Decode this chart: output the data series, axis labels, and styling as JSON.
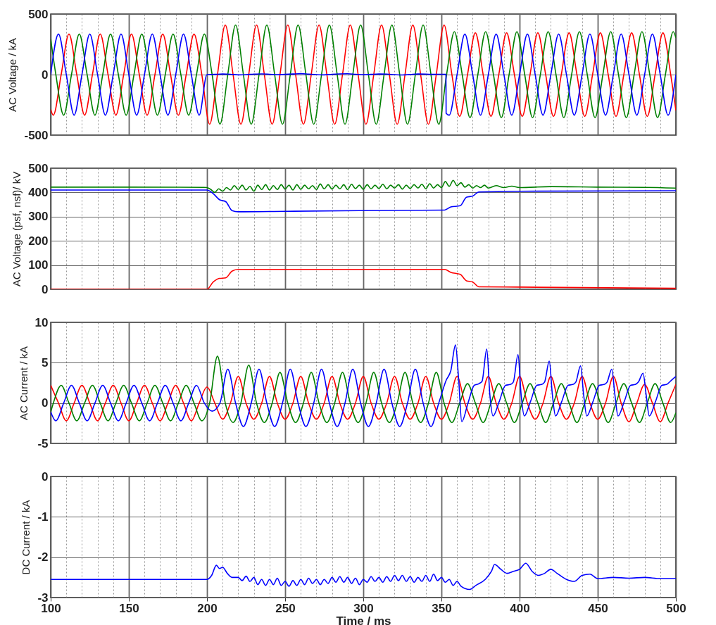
{
  "chart_data": [
    {
      "type": "line",
      "ylabel": "AC Voltage / kA",
      "xlim": [
        100,
        500
      ],
      "ylim": [
        -500,
        500
      ],
      "yticks": [
        -500,
        0,
        500
      ],
      "grid": true,
      "tick_labels": "y",
      "xticks": [
        100,
        {
          "value": 110,
          "label": null
        },
        {
          "value": 120,
          "label": null
        },
        {
          "value": 130,
          "label": null
        },
        {
          "value": 140,
          "label": null
        },
        150,
        {
          "value": 160,
          "label": null
        },
        {
          "value": 170,
          "label": null
        },
        {
          "value": 180,
          "label": null
        },
        {
          "value": 190,
          "label": null
        },
        200,
        {
          "value": 210,
          "label": null
        },
        {
          "value": 220,
          "label": null
        },
        {
          "value": 230,
          "label": null
        },
        {
          "value": 240,
          "label": null
        },
        250,
        {
          "value": 260,
          "label": null
        },
        {
          "value": 270,
          "label": null
        },
        {
          "value": 280,
          "label": null
        },
        {
          "value": 290,
          "label": null
        },
        300,
        {
          "value": 310,
          "label": null
        },
        {
          "value": 320,
          "label": null
        },
        {
          "value": 330,
          "label": null
        },
        {
          "value": 340,
          "label": null
        },
        350,
        {
          "value": 360,
          "label": null
        },
        {
          "value": 370,
          "label": null
        },
        {
          "value": 380,
          "label": null
        },
        {
          "value": 390,
          "label": null
        },
        400,
        {
          "value": 410,
          "label": null
        },
        {
          "value": 420,
          "label": null
        },
        {
          "value": 430,
          "label": null
        },
        {
          "value": 440,
          "label": null
        },
        450,
        {
          "value": 460,
          "label": null
        },
        {
          "value": 470,
          "label": null
        },
        {
          "value": 480,
          "label": null
        },
        {
          "value": 490,
          "label": null
        },
        500
      ],
      "series": [
        {
          "color": "#ff0000",
          "x": [
            100,
            101.7,
            106.7,
            111.7,
            116.7,
            121.7,
            126.7,
            131.7,
            136.7,
            141.7,
            146.7,
            151.7,
            156.7,
            161.7,
            166.7,
            171.7,
            176.7,
            181.7,
            186.7,
            191.7,
            196.7,
            201.7,
            206.7,
            211.7,
            216.7,
            221.7,
            226.7,
            231.7,
            236.7,
            241.7,
            246.7,
            251.7,
            256.7,
            261.7,
            266.7,
            271.7,
            276.7,
            281.7,
            286.7,
            291.7,
            296.7,
            301.7,
            306.7,
            311.7,
            316.7,
            321.7,
            326.7,
            331.7,
            336.7,
            341.7,
            346.7,
            351.7,
            356.7,
            361.7,
            366.7,
            371.7,
            376.7,
            381.7,
            386.7,
            391.7,
            396.7,
            401.7,
            406.7,
            411.7,
            416.7,
            421.7,
            426.7,
            431.7,
            436.7,
            441.7,
            446.7,
            451.7,
            456.7,
            461.7,
            466.7,
            471.7,
            476.7,
            481.7,
            486.7,
            491.7,
            496.7,
            500
          ],
          "values": [
            -287,
            -335,
            0,
            335,
            0,
            -335,
            0,
            335,
            0,
            -335,
            0,
            335,
            0,
            -335,
            0,
            335,
            0,
            -335,
            0,
            335,
            0,
            -410,
            0,
            410,
            0,
            -410,
            0,
            410,
            0,
            -410,
            0,
            410,
            0,
            -410,
            0,
            410,
            0,
            -410,
            0,
            410,
            0,
            -410,
            0,
            410,
            0,
            -410,
            0,
            410,
            0,
            -410,
            0,
            410,
            0,
            -345,
            0,
            345,
            0,
            -345,
            0,
            345,
            0,
            -345,
            0,
            345,
            0,
            -345,
            0,
            345,
            0,
            -345,
            0,
            345,
            0,
            -345,
            0,
            345,
            0,
            -345,
            0,
            345,
            0,
            -296
          ]
        },
        {
          "color": "#008000",
          "x": [
            100,
            103.3,
            108.3,
            113.3,
            118.3,
            123.3,
            128.3,
            133.3,
            138.3,
            143.3,
            148.3,
            153.3,
            158.3,
            163.3,
            168.3,
            173.3,
            178.3,
            183.3,
            188.3,
            193.3,
            198.3,
            203.3,
            208.3,
            213.3,
            218.3,
            223.3,
            228.3,
            233.3,
            238.3,
            243.3,
            248.3,
            253.3,
            258.3,
            263.3,
            268.3,
            273.3,
            278.3,
            283.3,
            288.3,
            293.3,
            298.3,
            303.3,
            308.3,
            313.3,
            318.3,
            323.3,
            328.3,
            333.3,
            338.3,
            343.3,
            348.3,
            353.3,
            358.3,
            363.3,
            368.3,
            373.3,
            378.3,
            383.3,
            388.3,
            393.3,
            398.3,
            403.3,
            408.3,
            413.3,
            418.3,
            423.3,
            428.3,
            433.3,
            438.3,
            443.3,
            448.3,
            453.3,
            458.3,
            463.3,
            468.3,
            473.3,
            478.3,
            483.3,
            488.3,
            493.3,
            498.3,
            500
          ],
          "values": [
            293,
            0,
            -335,
            0,
            335,
            0,
            -335,
            0,
            335,
            0,
            -335,
            0,
            335,
            0,
            -335,
            0,
            335,
            0,
            -335,
            0,
            335,
            0,
            -410,
            0,
            410,
            0,
            -410,
            0,
            410,
            0,
            -410,
            0,
            410,
            0,
            -410,
            0,
            410,
            0,
            -410,
            0,
            410,
            0,
            -410,
            0,
            410,
            0,
            -410,
            0,
            410,
            0,
            -410,
            0,
            355,
            0,
            -355,
            0,
            355,
            0,
            -355,
            0,
            355,
            0,
            -355,
            0,
            355,
            0,
            -355,
            0,
            355,
            0,
            -355,
            0,
            355,
            0,
            -355,
            0,
            355,
            0,
            -355,
            0,
            355,
            305
          ]
        },
        {
          "color": "#0000ff",
          "x": [
            100,
            105,
            110,
            115,
            120,
            125,
            130,
            135,
            140,
            145,
            150,
            155,
            160,
            165,
            170,
            175,
            180,
            185,
            190,
            195,
            200,
            205,
            210,
            215,
            220,
            225,
            230,
            235,
            240,
            245,
            250,
            255,
            260,
            265,
            270,
            275,
            280,
            285,
            290,
            295,
            300,
            305,
            310,
            315,
            320,
            325,
            330,
            335,
            340,
            345,
            350,
            352.9,
            353,
            355,
            360,
            365,
            370,
            375,
            380,
            385,
            390,
            395,
            400,
            405,
            410,
            415,
            420,
            425,
            430,
            435,
            440,
            445,
            450,
            455,
            460,
            465,
            470,
            475,
            480,
            485,
            490,
            495,
            500
          ],
          "values": [
            0,
            335,
            0,
            -335,
            0,
            335,
            0,
            -335,
            0,
            335,
            0,
            -335,
            0,
            335,
            0,
            -335,
            0,
            335,
            0,
            -335,
            0,
            2,
            5,
            3,
            -2,
            0,
            4,
            6,
            3,
            -1,
            2,
            5,
            8,
            4,
            0,
            -2,
            3,
            6,
            7,
            3,
            -1,
            2,
            5,
            4,
            0,
            -3,
            1,
            5,
            4,
            2,
            3,
            3,
            -320,
            -335,
            0,
            335,
            0,
            -335,
            0,
            335,
            0,
            -335,
            0,
            335,
            0,
            -335,
            0,
            335,
            0,
            -335,
            0,
            335,
            0,
            -335,
            0,
            335,
            0,
            -335,
            0,
            335,
            0,
            -335,
            0
          ]
        }
      ]
    },
    {
      "type": "line",
      "ylabel": "AC Voltage (psf, nsf)/ kV",
      "xlim": [
        100,
        500
      ],
      "ylim": [
        0,
        500
      ],
      "yticks": [
        0,
        100,
        200,
        300,
        400,
        500
      ],
      "grid": true,
      "tick_labels": "y",
      "xticks": [
        100,
        {
          "value": 110,
          "label": null
        },
        {
          "value": 120,
          "label": null
        },
        {
          "value": 130,
          "label": null
        },
        {
          "value": 140,
          "label": null
        },
        150,
        {
          "value": 160,
          "label": null
        },
        {
          "value": 170,
          "label": null
        },
        {
          "value": 180,
          "label": null
        },
        {
          "value": 190,
          "label": null
        },
        200,
        {
          "value": 210,
          "label": null
        },
        {
          "value": 220,
          "label": null
        },
        {
          "value": 230,
          "label": null
        },
        {
          "value": 240,
          "label": null
        },
        250,
        {
          "value": 260,
          "label": null
        },
        {
          "value": 270,
          "label": null
        },
        {
          "value": 280,
          "label": null
        },
        {
          "value": 290,
          "label": null
        },
        300,
        {
          "value": 310,
          "label": null
        },
        {
          "value": 320,
          "label": null
        },
        {
          "value": 330,
          "label": null
        },
        {
          "value": 340,
          "label": null
        },
        350,
        {
          "value": 360,
          "label": null
        },
        {
          "value": 370,
          "label": null
        },
        {
          "value": 380,
          "label": null
        },
        {
          "value": 390,
          "label": null
        },
        400,
        {
          "value": 410,
          "label": null
        },
        {
          "value": 420,
          "label": null
        },
        {
          "value": 430,
          "label": null
        },
        {
          "value": 440,
          "label": null
        },
        450,
        {
          "value": 460,
          "label": null
        },
        {
          "value": 470,
          "label": null
        },
        {
          "value": 480,
          "label": null
        },
        {
          "value": 490,
          "label": null
        },
        500
      ],
      "series": [
        {
          "color": "#008000",
          "x": [
            100,
            150,
            198,
            200,
            202.5,
            205,
            207.5,
            210,
            212.5,
            215,
            217.5,
            220,
            222.5,
            225,
            227.5,
            230,
            232.5,
            235,
            237.5,
            240,
            242.5,
            245,
            247.5,
            250,
            252.5,
            255,
            257.5,
            260,
            262.5,
            265,
            267.5,
            270,
            272.5,
            275,
            277.5,
            280,
            282.5,
            285,
            287.5,
            290,
            292.5,
            295,
            297.5,
            300,
            302.5,
            305,
            307.5,
            310,
            312.5,
            315,
            317.5,
            320,
            322.5,
            325,
            327.5,
            330,
            332.5,
            335,
            337.5,
            340,
            342.5,
            345,
            347.5,
            350,
            352.5,
            355,
            357.5,
            360,
            362.5,
            365,
            367.5,
            370,
            372.5,
            375,
            377.5,
            380,
            385,
            390,
            395,
            400,
            420,
            450,
            480,
            500
          ],
          "values": [
            422,
            422,
            421,
            420,
            412,
            400,
            415,
            405,
            420,
            410,
            428,
            412,
            430,
            410,
            425,
            405,
            430,
            412,
            432,
            410,
            428,
            412,
            432,
            414,
            430,
            410,
            432,
            413,
            430,
            415,
            428,
            412,
            435,
            415,
            432,
            414,
            430,
            415,
            432,
            412,
            434,
            416,
            430,
            413,
            432,
            415,
            430,
            416,
            434,
            415,
            430,
            418,
            432,
            414,
            430,
            416,
            432,
            418,
            434,
            415,
            436,
            418,
            432,
            420,
            445,
            425,
            450,
            428,
            440,
            422,
            432,
            418,
            428,
            420,
            430,
            418,
            428,
            420,
            426,
            420,
            424,
            422,
            421,
            418
          ]
        },
        {
          "color": "#0000ff",
          "x": [
            100,
            200,
            204,
            208,
            212,
            216,
            220,
            250,
            300,
            352,
            356,
            362,
            366,
            370,
            374,
            400,
            500
          ],
          "values": [
            410,
            410,
            395,
            370,
            362,
            325,
            320,
            322,
            325,
            327,
            340,
            345,
            380,
            385,
            402,
            405,
            407
          ]
        },
        {
          "color": "#ff0000",
          "x": [
            100,
            200,
            204,
            208,
            212,
            216,
            220,
            300,
            352,
            356,
            362,
            366,
            370,
            374,
            400,
            500
          ],
          "values": [
            0,
            0,
            30,
            45,
            47,
            75,
            82,
            82,
            82,
            70,
            62,
            35,
            30,
            10,
            9,
            4
          ]
        }
      ]
    },
    {
      "type": "line",
      "ylabel": "AC Current / kA",
      "xlim": [
        100,
        500
      ],
      "ylim": [
        -5,
        10
      ],
      "yticks": [
        -5,
        0,
        5,
        10
      ],
      "grid": true,
      "tick_labels": "y",
      "xticks": [
        100,
        {
          "value": 110,
          "label": null
        },
        {
          "value": 120,
          "label": null
        },
        {
          "value": 130,
          "label": null
        },
        {
          "value": 140,
          "label": null
        },
        150,
        {
          "value": 160,
          "label": null
        },
        {
          "value": 170,
          "label": null
        },
        {
          "value": 180,
          "label": null
        },
        {
          "value": 190,
          "label": null
        },
        200,
        {
          "value": 210,
          "label": null
        },
        {
          "value": 220,
          "label": null
        },
        {
          "value": 230,
          "label": null
        },
        {
          "value": 240,
          "label": null
        },
        250,
        {
          "value": 260,
          "label": null
        },
        {
          "value": 270,
          "label": null
        },
        {
          "value": 280,
          "label": null
        },
        {
          "value": 290,
          "label": null
        },
        300,
        {
          "value": 310,
          "label": null
        },
        {
          "value": 320,
          "label": null
        },
        {
          "value": 330,
          "label": null
        },
        {
          "value": 340,
          "label": null
        },
        350,
        {
          "value": 360,
          "label": null
        },
        {
          "value": 370,
          "label": null
        },
        {
          "value": 380,
          "label": null
        },
        {
          "value": 390,
          "label": null
        },
        400,
        {
          "value": 410,
          "label": null
        },
        {
          "value": 420,
          "label": null
        },
        {
          "value": 430,
          "label": null
        },
        {
          "value": 440,
          "label": null
        },
        450,
        {
          "value": 460,
          "label": null
        },
        {
          "value": 470,
          "label": null
        },
        {
          "value": 480,
          "label": null
        },
        {
          "value": 490,
          "label": null
        },
        500
      ],
      "series": [
        {
          "color": "#ff0000",
          "x": [
            100,
            105,
            110,
            115,
            120,
            125,
            130,
            135,
            140,
            145,
            150,
            155,
            160,
            165,
            170,
            175,
            180,
            185,
            190,
            195,
            200,
            205,
            210,
            215,
            220,
            225,
            230,
            235,
            240,
            245,
            250,
            255,
            260,
            265,
            270,
            275,
            280,
            285,
            290,
            295,
            300,
            305,
            310,
            315,
            320,
            325,
            330,
            335,
            340,
            345,
            350,
            355,
            360,
            365,
            370,
            375,
            380,
            385,
            390,
            395,
            400,
            405,
            410,
            415,
            420,
            425,
            430,
            435,
            440,
            445,
            450,
            455,
            460,
            465,
            470,
            475,
            480,
            485,
            490,
            495,
            500
          ],
          "values": [
            2.2,
            0,
            -2.2,
            0,
            2.2,
            0,
            -2.2,
            0,
            2.2,
            0,
            -2.2,
            0,
            2.2,
            0,
            -2.2,
            0,
            2.2,
            0,
            -2.2,
            0,
            2.0,
            0,
            -2.0,
            0,
            3.3,
            0,
            -2.0,
            0,
            3.3,
            0,
            -2.0,
            0,
            3.3,
            0,
            -2.0,
            0,
            3.3,
            0,
            -2.0,
            0,
            3.3,
            0,
            -2.0,
            0,
            3.3,
            0,
            -2.0,
            0,
            3.3,
            0,
            -2.0,
            0,
            3.3,
            0,
            -2.0,
            0,
            3.3,
            0,
            -2.0,
            0,
            3.3,
            0,
            -2.0,
            0,
            3.3,
            0,
            -2.0,
            0,
            3.3,
            0,
            -2.0,
            0,
            3.3,
            0,
            -2.3,
            0,
            2.3,
            0,
            -2.3,
            0,
            2.3
          ]
        },
        {
          "color": "#008000",
          "x": [
            100,
            101.7,
            106.7,
            111.7,
            116.7,
            121.7,
            126.7,
            131.7,
            136.7,
            141.7,
            146.7,
            151.7,
            156.7,
            161.7,
            166.7,
            171.7,
            176.7,
            181.7,
            186.7,
            191.7,
            196.7,
            201.7,
            206.7,
            211.7,
            216.7,
            221.7,
            226.7,
            231.7,
            236.7,
            241.7,
            246.7,
            251.7,
            256.7,
            261.7,
            266.7,
            271.7,
            276.7,
            281.7,
            286.7,
            291.7,
            296.7,
            301.7,
            306.7,
            311.7,
            316.7,
            321.7,
            326.7,
            331.7,
            336.7,
            341.7,
            346.7,
            351.7,
            356.7,
            361.7,
            366.7,
            371.7,
            376.7,
            381.7,
            386.7,
            391.7,
            396.7,
            401.7,
            406.7,
            411.7,
            416.7,
            421.7,
            426.7,
            431.7,
            436.7,
            441.7,
            446.7,
            451.7,
            456.7,
            461.7,
            466.7,
            471.7,
            476.7,
            481.7,
            486.7,
            491.7,
            496.7,
            500
          ],
          "values": [
            -1.1,
            0,
            2.2,
            0,
            -2.2,
            0,
            2.2,
            0,
            -2.2,
            0,
            2.2,
            0,
            -2.2,
            0,
            2.2,
            0,
            -2.2,
            0,
            2.2,
            0,
            -2.2,
            0,
            5.8,
            0,
            -2.4,
            0,
            4.7,
            0,
            -2.4,
            0,
            3.8,
            0,
            -2.4,
            0,
            3.8,
            0,
            -2.4,
            0,
            3.8,
            0,
            -2.4,
            0,
            3.8,
            0,
            -2.4,
            0,
            3.8,
            0,
            -2.4,
            0,
            3.8,
            0,
            -2.4,
            0,
            2.4,
            0,
            -2.4,
            0,
            2.4,
            0,
            -2.4,
            0,
            2.4,
            0,
            -2.4,
            0,
            2.4,
            0,
            -2.4,
            0,
            2.4,
            0,
            -2.4,
            0,
            2.4,
            0,
            -2.4,
            0,
            2.4,
            0,
            -2.4,
            -1.2
          ]
        },
        {
          "color": "#0000ff",
          "x": [
            100,
            103.3,
            108.3,
            113.3,
            118.3,
            123.3,
            128.3,
            133.3,
            138.3,
            143.3,
            148.3,
            153.3,
            158.3,
            163.3,
            168.3,
            173.3,
            178.3,
            183.3,
            188.3,
            193.3,
            198.3,
            203.3,
            208.3,
            213.3,
            218.3,
            223.3,
            228.3,
            233.3,
            238.3,
            243.3,
            248.3,
            253.3,
            258.3,
            263.3,
            268.3,
            273.3,
            278.3,
            283.3,
            288.3,
            293.3,
            298.3,
            303.3,
            308.3,
            313.3,
            318.3,
            323.3,
            328.3,
            333.3,
            338.3,
            343.3,
            348.3,
            353,
            356,
            359,
            361,
            363,
            367,
            371,
            374,
            376,
            379,
            381,
            383,
            387,
            391,
            394,
            396,
            399,
            401,
            403,
            407,
            411,
            414,
            416,
            419,
            421,
            423,
            427,
            431,
            434,
            436,
            439,
            441,
            443,
            447,
            451,
            454,
            456,
            459,
            461,
            463,
            467,
            471,
            474,
            476,
            479,
            481,
            483,
            487,
            491,
            494,
            497,
            500
          ],
          "values": [
            -1.1,
            -2.2,
            0,
            2.2,
            0,
            -2.2,
            0,
            2.2,
            0,
            -2.2,
            0,
            2.2,
            0,
            -2.2,
            0,
            2.2,
            0,
            -2.2,
            0,
            2.2,
            0,
            -1.0,
            0,
            4.2,
            0,
            -2.9,
            0,
            4.2,
            0,
            -2.9,
            0,
            4.2,
            0,
            -2.9,
            0,
            4.2,
            0,
            -2.9,
            0,
            4.2,
            0,
            -2.9,
            0,
            4.2,
            0,
            -2.9,
            0,
            4.2,
            0,
            -2.9,
            0,
            2.8,
            4.0,
            7.2,
            3.0,
            -2.3,
            0,
            2.2,
            2.4,
            2.7,
            6.7,
            1.0,
            -1.6,
            0.2,
            2.2,
            2.3,
            2.6,
            6.0,
            1.0,
            -1.6,
            0.2,
            2.2,
            2.3,
            2.6,
            5.2,
            1.0,
            -1.6,
            0.2,
            2.2,
            2.3,
            2.6,
            4.6,
            1.0,
            -1.6,
            0.2,
            2.2,
            2.3,
            2.6,
            4.2,
            1.0,
            -1.6,
            0.2,
            2.2,
            2.3,
            2.6,
            3.7,
            1.0,
            -1.6,
            0.2,
            2.2,
            2.3,
            2.8,
            3.3
          ]
        }
      ]
    },
    {
      "type": "line",
      "xlabel": "Time / ms",
      "ylabel": "DC Current / kA",
      "xlim": [
        100,
        500
      ],
      "ylim": [
        -3,
        0
      ],
      "yticks": [
        -3,
        -2,
        -1,
        0
      ],
      "grid": true,
      "xticks": [
        100,
        {
          "value": 110,
          "label": null
        },
        {
          "value": 120,
          "label": null
        },
        {
          "value": 130,
          "label": null
        },
        {
          "value": 140,
          "label": null
        },
        150,
        {
          "value": 160,
          "label": null
        },
        {
          "value": 170,
          "label": null
        },
        {
          "value": 180,
          "label": null
        },
        {
          "value": 190,
          "label": null
        },
        200,
        {
          "value": 210,
          "label": null
        },
        {
          "value": 220,
          "label": null
        },
        {
          "value": 230,
          "label": null
        },
        {
          "value": 240,
          "label": null
        },
        250,
        {
          "value": 260,
          "label": null
        },
        {
          "value": 270,
          "label": null
        },
        {
          "value": 280,
          "label": null
        },
        {
          "value": 290,
          "label": null
        },
        300,
        {
          "value": 310,
          "label": null
        },
        {
          "value": 320,
          "label": null
        },
        {
          "value": 330,
          "label": null
        },
        {
          "value": 340,
          "label": null
        },
        350,
        {
          "value": 360,
          "label": null
        },
        {
          "value": 370,
          "label": null
        },
        {
          "value": 380,
          "label": null
        },
        {
          "value": 390,
          "label": null
        },
        400,
        {
          "value": 410,
          "label": null
        },
        {
          "value": 420,
          "label": null
        },
        {
          "value": 430,
          "label": null
        },
        {
          "value": 440,
          "label": null
        },
        450,
        {
          "value": 460,
          "label": null
        },
        {
          "value": 470,
          "label": null
        },
        {
          "value": 480,
          "label": null
        },
        {
          "value": 490,
          "label": null
        },
        500
      ],
      "series": [
        {
          "color": "#0000ff",
          "x": [
            100,
            150,
            200,
            203,
            206,
            208,
            210,
            213,
            216,
            220,
            222.5,
            225,
            227.5,
            230,
            232.5,
            235,
            237.5,
            240,
            242.5,
            245,
            247.5,
            250,
            252.5,
            255,
            257.5,
            260,
            262.5,
            265,
            267.5,
            270,
            272.5,
            275,
            277.5,
            280,
            282.5,
            285,
            287.5,
            290,
            292.5,
            295,
            297.5,
            300,
            302.5,
            305,
            307.5,
            310,
            312.5,
            315,
            317.5,
            320,
            322.5,
            325,
            327.5,
            330,
            332.5,
            335,
            337.5,
            340,
            342.5,
            345,
            347.5,
            350,
            352.5,
            355,
            357.5,
            360,
            362.5,
            368,
            372,
            378,
            382,
            384,
            388,
            392,
            396,
            400,
            404,
            408,
            412,
            416,
            420,
            424,
            430,
            435,
            440,
            445,
            450,
            460,
            470,
            480,
            490,
            500
          ],
          "values": [
            -2.55,
            -2.55,
            -2.55,
            -2.45,
            -2.2,
            -2.28,
            -2.25,
            -2.4,
            -2.5,
            -2.5,
            -2.58,
            -2.47,
            -2.6,
            -2.5,
            -2.68,
            -2.55,
            -2.7,
            -2.55,
            -2.68,
            -2.52,
            -2.7,
            -2.6,
            -2.72,
            -2.58,
            -2.7,
            -2.55,
            -2.68,
            -2.52,
            -2.65,
            -2.55,
            -2.68,
            -2.55,
            -2.65,
            -2.5,
            -2.62,
            -2.48,
            -2.62,
            -2.5,
            -2.65,
            -2.52,
            -2.68,
            -2.55,
            -2.62,
            -2.48,
            -2.6,
            -2.5,
            -2.62,
            -2.48,
            -2.6,
            -2.45,
            -2.58,
            -2.45,
            -2.6,
            -2.48,
            -2.62,
            -2.5,
            -2.6,
            -2.45,
            -2.6,
            -2.42,
            -2.58,
            -2.5,
            -2.62,
            -2.55,
            -2.7,
            -2.6,
            -2.72,
            -2.8,
            -2.7,
            -2.55,
            -2.35,
            -2.18,
            -2.3,
            -2.4,
            -2.35,
            -2.3,
            -2.15,
            -2.35,
            -2.45,
            -2.4,
            -2.3,
            -2.4,
            -2.55,
            -2.6,
            -2.45,
            -2.42,
            -2.53,
            -2.5,
            -2.52,
            -2.5,
            -2.53,
            -2.53
          ]
        }
      ]
    }
  ]
}
